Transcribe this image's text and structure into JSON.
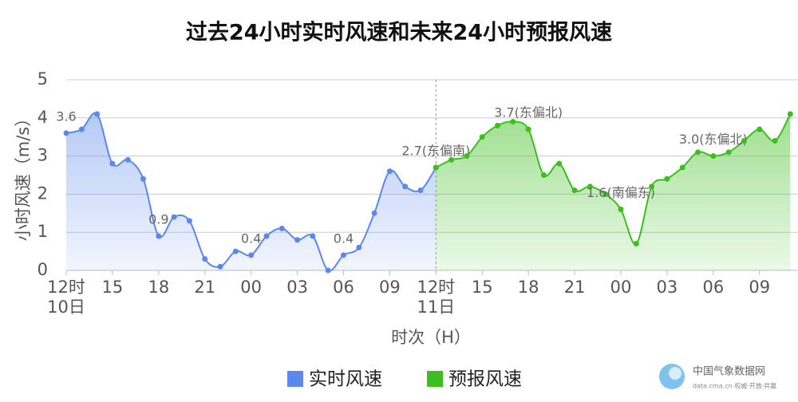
{
  "chart_data": {
    "type": "line",
    "title": "过去24小时实时风速和未来24小时预报风速",
    "y_label": "小时风速（m/s）",
    "x_label": "时次（H）",
    "xlim": [
      0,
      47.5
    ],
    "ylim": [
      0,
      5
    ],
    "yticks": [
      0,
      1,
      2,
      3,
      4,
      5
    ],
    "xticks": [
      {
        "value": 0,
        "label": "12时"
      },
      {
        "value": 3,
        "label": "15"
      },
      {
        "value": 6,
        "label": "18"
      },
      {
        "value": 9,
        "label": "21"
      },
      {
        "value": 12,
        "label": "00"
      },
      {
        "value": 15,
        "label": "03"
      },
      {
        "value": 18,
        "label": "06"
      },
      {
        "value": 21,
        "label": "09"
      },
      {
        "value": 24,
        "label": "12时"
      },
      {
        "value": 27,
        "label": "15"
      },
      {
        "value": 30,
        "label": "18"
      },
      {
        "value": 33,
        "label": "21"
      },
      {
        "value": 36,
        "label": "00"
      },
      {
        "value": 39,
        "label": "03"
      },
      {
        "value": 42,
        "label": "06"
      },
      {
        "value": 45,
        "label": "09"
      }
    ],
    "x_date_labels": [
      {
        "value": 0,
        "label": "10日"
      },
      {
        "value": 24,
        "label": "11日"
      }
    ],
    "divider_x": 24,
    "grid": true,
    "legend": "bottom",
    "series": [
      {
        "name": "实时风速",
        "color": "#5b87ee",
        "x": [
          0,
          1,
          2,
          3,
          4,
          5,
          6,
          7,
          8,
          9,
          10,
          11,
          12,
          13,
          14,
          15,
          16,
          17,
          18,
          19,
          20,
          21,
          22,
          23,
          24
        ],
        "values": [
          3.6,
          3.7,
          4.1,
          2.8,
          2.9,
          2.4,
          0.9,
          1.4,
          1.3,
          0.3,
          0.1,
          0.5,
          0.4,
          0.9,
          1.1,
          0.8,
          0.9,
          0.0,
          0.4,
          0.6,
          1.5,
          2.6,
          2.2,
          2.1,
          2.7
        ],
        "value_labels": [
          "3.6",
          null,
          null,
          null,
          null,
          null,
          "0.9",
          null,
          null,
          null,
          null,
          null,
          "0.4",
          null,
          null,
          null,
          null,
          null,
          "0.4",
          null,
          null,
          null,
          null,
          null,
          null
        ]
      },
      {
        "name": "预报风速",
        "color": "#3cbf1e",
        "x": [
          24,
          25,
          26,
          27,
          28,
          29,
          30,
          31,
          32,
          33,
          34,
          35,
          36,
          37,
          38,
          39,
          40,
          41,
          42,
          43,
          44,
          45,
          46,
          47
        ],
        "values": [
          2.7,
          2.9,
          3.0,
          3.5,
          3.8,
          3.9,
          3.7,
          2.5,
          2.8,
          2.1,
          2.2,
          2.0,
          1.6,
          0.7,
          2.2,
          2.4,
          2.7,
          3.1,
          3.0,
          3.1,
          3.4,
          3.7,
          3.4,
          4.1
        ],
        "value_labels": [
          "2.7(东偏南)",
          null,
          null,
          null,
          null,
          null,
          "3.7(东偏北)",
          null,
          null,
          null,
          null,
          null,
          "1.6(南偏东)",
          null,
          null,
          null,
          null,
          null,
          "3.0(东偏北)",
          null,
          null,
          null,
          null,
          null
        ]
      }
    ]
  },
  "footer": {
    "logo_text": "中国气象数据网",
    "logo_subtext": "data.cma.cn 权威·开放·共赢"
  }
}
